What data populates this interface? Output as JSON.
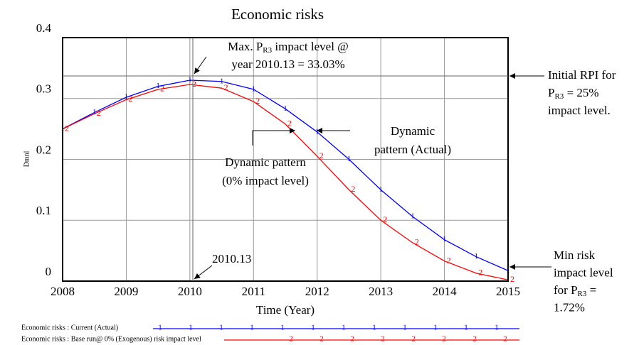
{
  "chart_data": {
    "type": "line",
    "title": "Economic risks",
    "ylabel": "Dmnl",
    "xlabel": "Time (Year)",
    "x": [
      2008,
      2008.5,
      2009,
      2009.5,
      2010,
      2010.5,
      2011,
      2011.5,
      2012,
      2012.5,
      2013,
      2013.5,
      2014,
      2014.5,
      2015
    ],
    "series": [
      {
        "name": "Economic risks : Current (Actual)",
        "color": "#0000ff",
        "marker": "1",
        "values": [
          0.25,
          0.277,
          0.302,
          0.32,
          0.33,
          0.328,
          0.315,
          0.283,
          0.245,
          0.2,
          0.15,
          0.106,
          0.068,
          0.04,
          0.0172
        ]
      },
      {
        "name": "Economic risks : Base run@ 0% (Exogenous) risk impact level",
        "color": "#ff0000",
        "marker": "2",
        "values": [
          0.25,
          0.275,
          0.298,
          0.315,
          0.323,
          0.317,
          0.295,
          0.258,
          0.205,
          0.15,
          0.1,
          0.063,
          0.033,
          0.013,
          0.002
        ]
      }
    ],
    "xlim": [
      2008,
      2015
    ],
    "xticks": [
      2008,
      2009,
      2010,
      2011,
      2012,
      2013,
      2014,
      2015
    ],
    "ylim": [
      0,
      0.4
    ],
    "yticks": [
      0,
      0.1,
      0.2,
      0.3,
      0.4
    ],
    "grid": true,
    "annotations": [
      {
        "lines": [
          [
            "Max. P",
            "R3",
            " impact level @"
          ],
          [
            "year 2010.13 = 33.03%"
          ]
        ]
      },
      {
        "lines": [
          [
            "Initial RPI for"
          ],
          [
            "P",
            "R3",
            " = 25%"
          ],
          [
            "impact level."
          ]
        ]
      },
      {
        "lines": [
          [
            "Dynamic"
          ],
          [
            "pattern (Actual)"
          ]
        ]
      },
      {
        "lines": [
          [
            "Dynamic pattern"
          ],
          [
            "(0% impact level)"
          ]
        ]
      },
      {
        "lines": [
          [
            "2010.13"
          ]
        ]
      },
      {
        "lines": [
          [
            "Min risk"
          ],
          [
            "impact level"
          ],
          [
            "for P",
            "R3",
            " ="
          ],
          [
            "1.72%"
          ]
        ]
      }
    ]
  }
}
